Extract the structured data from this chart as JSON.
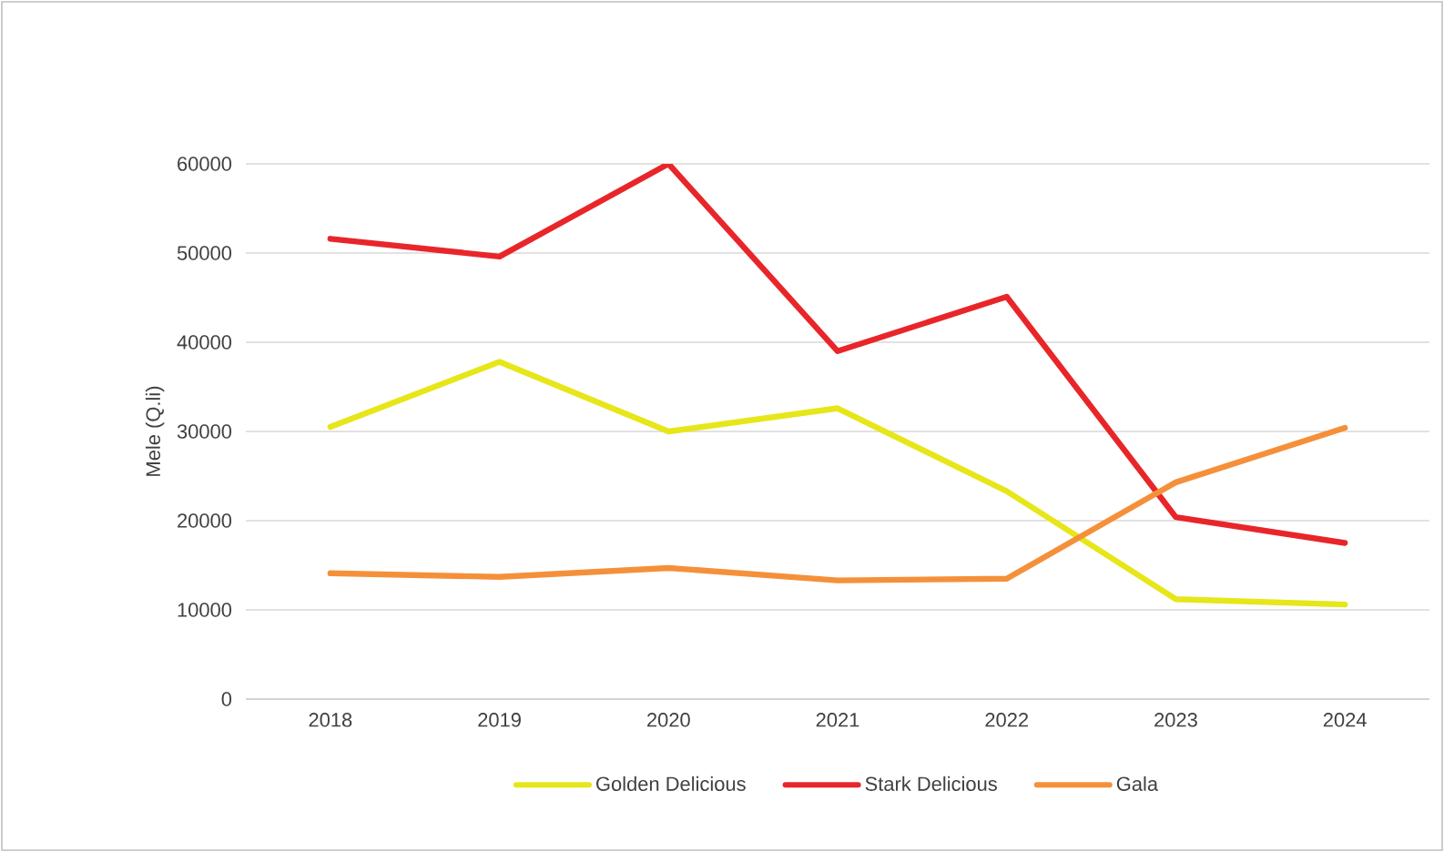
{
  "chart_data": {
    "type": "line",
    "ylabel": "Mele (Q.li)",
    "categories": [
      "2018",
      "2019",
      "2020",
      "2021",
      "2022",
      "2023",
      "2024"
    ],
    "series": [
      {
        "name": "Golden Delicious",
        "color": "#e6e619",
        "values": [
          30500,
          37800,
          30000,
          32600,
          23300,
          11200,
          10600
        ]
      },
      {
        "name": "Stark Delicious",
        "color": "#e8262a",
        "values": [
          51600,
          49600,
          60000,
          39000,
          45100,
          20400,
          17500
        ]
      },
      {
        "name": "Gala",
        "color": "#f5903a",
        "values": [
          14100,
          13700,
          14700,
          13300,
          13500,
          24300,
          30400
        ]
      }
    ],
    "ylim": [
      0,
      60000
    ],
    "yticks": [
      0,
      10000,
      20000,
      30000,
      40000,
      50000,
      60000
    ],
    "grid": "y",
    "legend": "bottom",
    "marker": "none",
    "line_style": "solid"
  }
}
